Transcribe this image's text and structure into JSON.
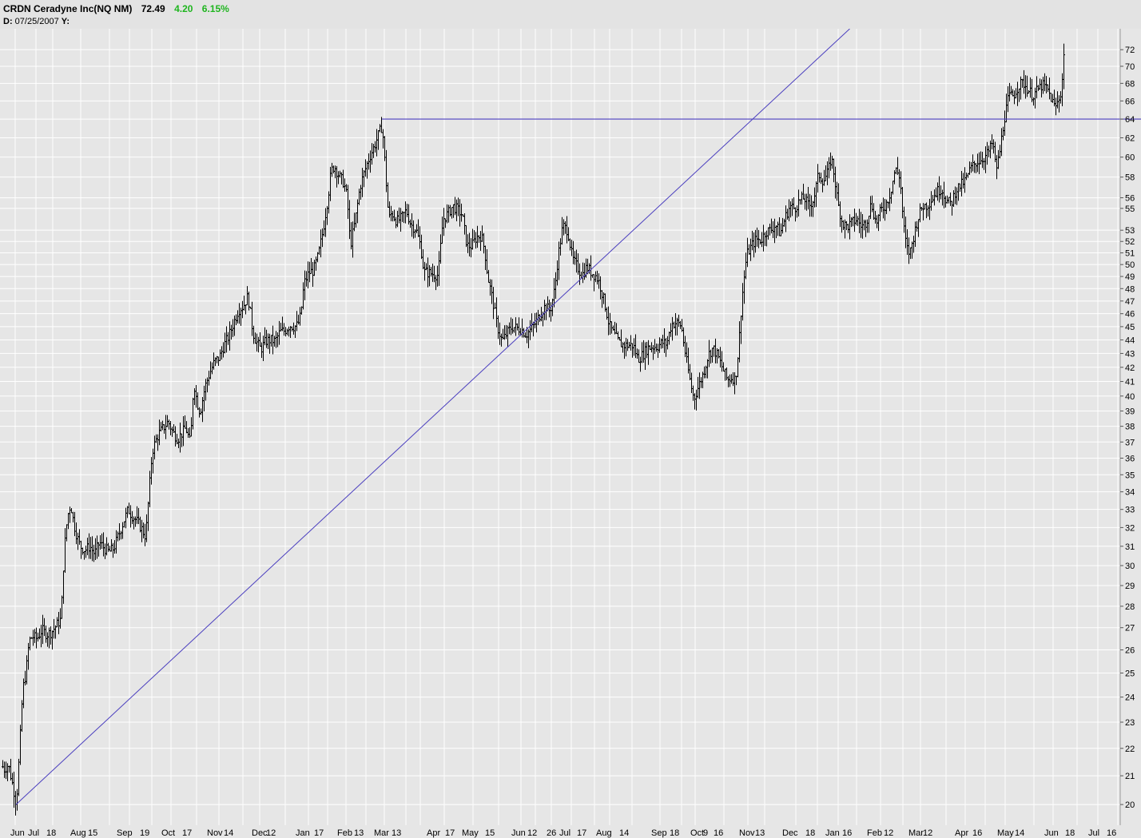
{
  "header": {
    "title": "CRDN Ceradyne Inc(NQ NM)",
    "last": "72.49",
    "change": "4.20",
    "change_pct": "6.15%",
    "date_label": "D:",
    "date": "07/25/2007",
    "y_label": "Y:",
    "up_color": "#1fb51f"
  },
  "chart_data": {
    "type": "bar",
    "subtype": "ohlc",
    "scale": "log",
    "grid": true,
    "bar_color": "#000000",
    "line_color": "#4b3fbf",
    "ylim": [
      19.6,
      74.5
    ],
    "y_ticks": [
      20,
      21,
      22,
      23,
      24,
      25,
      26,
      27,
      28,
      29,
      30,
      31,
      32,
      33,
      34,
      35,
      36,
      37,
      38,
      39,
      40,
      41,
      42,
      43,
      44,
      45,
      46,
      47,
      48,
      49,
      50,
      51,
      52,
      53,
      55,
      56,
      58,
      60,
      62,
      64,
      66,
      68,
      70,
      72
    ],
    "x_tick_labels": [
      "Jun",
      "Jul",
      "18",
      "Aug",
      "15",
      "Sep",
      "19",
      "Oct",
      "17",
      "Nov",
      "14",
      "Dec",
      "12",
      "Jan",
      "17",
      "Feb",
      "13",
      "Mar",
      "13",
      "Apr",
      "17",
      "May",
      "15",
      "Jun",
      "12",
      "26",
      "Jul",
      "17",
      "Aug",
      "14",
      "Sep",
      "18",
      "Oct",
      "9",
      "16",
      "Nov",
      "13",
      "Dec",
      "18",
      "Jan",
      "16",
      "Feb",
      "12",
      "Mar",
      "12",
      "Apr",
      "16",
      "May",
      "14",
      "Jun",
      "18",
      "Jul",
      "16"
    ],
    "price_path": [
      [
        0,
        21.7
      ],
      [
        4,
        21.2
      ],
      [
        10,
        21.4
      ],
      [
        16,
        20.6
      ],
      [
        20,
        20.0
      ],
      [
        24,
        21.9
      ],
      [
        28,
        24.3
      ],
      [
        32,
        25.0
      ],
      [
        36,
        26.4
      ],
      [
        40,
        26.6
      ],
      [
        46,
        26.5
      ],
      [
        52,
        26.9
      ],
      [
        58,
        26.7
      ],
      [
        64,
        26.8
      ],
      [
        70,
        27.1
      ],
      [
        76,
        27.4
      ],
      [
        80,
        30.8
      ],
      [
        84,
        32.6
      ],
      [
        88,
        33.3
      ],
      [
        92,
        32.2
      ],
      [
        96,
        31.5
      ],
      [
        100,
        31.0
      ],
      [
        106,
        30.8
      ],
      [
        112,
        31.0
      ],
      [
        118,
        30.6
      ],
      [
        124,
        31.2
      ],
      [
        130,
        30.9
      ],
      [
        136,
        30.7
      ],
      [
        142,
        30.9
      ],
      [
        148,
        31.6
      ],
      [
        154,
        32.3
      ],
      [
        160,
        33.0
      ],
      [
        164,
        32.7
      ],
      [
        170,
        32.4
      ],
      [
        176,
        32.0
      ],
      [
        182,
        31.5
      ],
      [
        186,
        33.9
      ],
      [
        190,
        36.4
      ],
      [
        194,
        37.0
      ],
      [
        198,
        37.5
      ],
      [
        204,
        37.9
      ],
      [
        210,
        38.3
      ],
      [
        216,
        37.6
      ],
      [
        222,
        37.2
      ],
      [
        228,
        37.6
      ],
      [
        232,
        37.9
      ],
      [
        238,
        36.9
      ],
      [
        242,
        41.0
      ],
      [
        246,
        39.6
      ],
      [
        250,
        38.9
      ],
      [
        256,
        40.6
      ],
      [
        262,
        41.6
      ],
      [
        268,
        42.4
      ],
      [
        274,
        42.7
      ],
      [
        280,
        43.6
      ],
      [
        286,
        44.3
      ],
      [
        292,
        45.3
      ],
      [
        298,
        46.3
      ],
      [
        304,
        46.6
      ],
      [
        310,
        47.4
      ],
      [
        316,
        44.6
      ],
      [
        320,
        43.9
      ],
      [
        326,
        43.3
      ],
      [
        332,
        43.9
      ],
      [
        338,
        44.0
      ],
      [
        344,
        43.9
      ],
      [
        350,
        44.6
      ],
      [
        356,
        44.7
      ],
      [
        362,
        45.1
      ],
      [
        368,
        45.0
      ],
      [
        372,
        45.1
      ],
      [
        376,
        45.9
      ],
      [
        380,
        48.4
      ],
      [
        386,
        49.3
      ],
      [
        392,
        49.5
      ],
      [
        398,
        50.8
      ],
      [
        404,
        53.0
      ],
      [
        410,
        56.0
      ],
      [
        414,
        58.6
      ],
      [
        418,
        59.1
      ],
      [
        424,
        58.1
      ],
      [
        430,
        57.4
      ],
      [
        434,
        56.0
      ],
      [
        438,
        51.6
      ],
      [
        444,
        53.8
      ],
      [
        450,
        57.0
      ],
      [
        456,
        58.6
      ],
      [
        462,
        60.0
      ],
      [
        468,
        61.1
      ],
      [
        474,
        62.5
      ],
      [
        478,
        63.3
      ],
      [
        482,
        58.5
      ],
      [
        486,
        54.0
      ],
      [
        490,
        54.6
      ],
      [
        496,
        53.8
      ],
      [
        502,
        54.1
      ],
      [
        508,
        54.8
      ],
      [
        514,
        53.5
      ],
      [
        520,
        53.1
      ],
      [
        526,
        51.6
      ],
      [
        530,
        49.4
      ],
      [
        536,
        49.3
      ],
      [
        542,
        49.2
      ],
      [
        548,
        49.1
      ],
      [
        554,
        54.0
      ],
      [
        560,
        54.5
      ],
      [
        566,
        55.2
      ],
      [
        572,
        54.9
      ],
      [
        578,
        54.4
      ],
      [
        584,
        51.6
      ],
      [
        590,
        51.6
      ],
      [
        596,
        52.4
      ],
      [
        602,
        52.5
      ],
      [
        606,
        51.3
      ],
      [
        610,
        49.0
      ],
      [
        616,
        47.1
      ],
      [
        622,
        45.0
      ],
      [
        628,
        43.9
      ],
      [
        634,
        44.5
      ],
      [
        640,
        45.0
      ],
      [
        646,
        44.9
      ],
      [
        652,
        44.8
      ],
      [
        658,
        44.4
      ],
      [
        664,
        44.8
      ],
      [
        670,
        45.3
      ],
      [
        676,
        46.0
      ],
      [
        682,
        46.6
      ],
      [
        688,
        46.2
      ],
      [
        694,
        48.0
      ],
      [
        698,
        50.7
      ],
      [
        704,
        53.4
      ],
      [
        710,
        53.0
      ],
      [
        716,
        50.5
      ],
      [
        722,
        49.8
      ],
      [
        728,
        49.1
      ],
      [
        734,
        49.8
      ],
      [
        740,
        49.3
      ],
      [
        746,
        49.0
      ],
      [
        750,
        48.4
      ],
      [
        756,
        46.9
      ],
      [
        762,
        45.1
      ],
      [
        768,
        44.4
      ],
      [
        774,
        43.8
      ],
      [
        780,
        43.6
      ],
      [
        786,
        43.6
      ],
      [
        792,
        43.6
      ],
      [
        798,
        42.6
      ],
      [
        804,
        42.9
      ],
      [
        810,
        43.4
      ],
      [
        816,
        43.5
      ],
      [
        822,
        43.5
      ],
      [
        828,
        43.8
      ],
      [
        834,
        43.7
      ],
      [
        840,
        45.2
      ],
      [
        846,
        45.3
      ],
      [
        852,
        45.1
      ],
      [
        858,
        42.7
      ],
      [
        864,
        40.8
      ],
      [
        868,
        39.8
      ],
      [
        874,
        40.7
      ],
      [
        880,
        41.6
      ],
      [
        886,
        42.9
      ],
      [
        892,
        43.4
      ],
      [
        898,
        42.8
      ],
      [
        904,
        41.9
      ],
      [
        910,
        41.1
      ],
      [
        916,
        41.3
      ],
      [
        920,
        41.1
      ],
      [
        924,
        43.4
      ],
      [
        928,
        47.1
      ],
      [
        934,
        50.8
      ],
      [
        940,
        51.6
      ],
      [
        946,
        52.2
      ],
      [
        952,
        52.1
      ],
      [
        958,
        52.9
      ],
      [
        964,
        53.0
      ],
      [
        970,
        53.5
      ],
      [
        976,
        52.7
      ],
      [
        982,
        54.1
      ],
      [
        988,
        55.2
      ],
      [
        994,
        55.0
      ],
      [
        1000,
        55.7
      ],
      [
        1006,
        56.0
      ],
      [
        1012,
        55.2
      ],
      [
        1018,
        55.9
      ],
      [
        1024,
        58.3
      ],
      [
        1030,
        57.6
      ],
      [
        1036,
        58.5
      ],
      [
        1040,
        60.0
      ],
      [
        1044,
        58.0
      ],
      [
        1048,
        55.5
      ],
      [
        1054,
        53.6
      ],
      [
        1060,
        53.3
      ],
      [
        1066,
        53.7
      ],
      [
        1072,
        54.0
      ],
      [
        1078,
        53.3
      ],
      [
        1084,
        53.8
      ],
      [
        1090,
        55.5
      ],
      [
        1096,
        53.6
      ],
      [
        1102,
        54.8
      ],
      [
        1108,
        55.3
      ],
      [
        1114,
        56.5
      ],
      [
        1120,
        58.8
      ],
      [
        1126,
        58.0
      ],
      [
        1130,
        53.6
      ],
      [
        1134,
        51.5
      ],
      [
        1138,
        50.9
      ],
      [
        1142,
        52.1
      ],
      [
        1148,
        54.0
      ],
      [
        1154,
        55.2
      ],
      [
        1160,
        55.3
      ],
      [
        1166,
        55.9
      ],
      [
        1172,
        56.6
      ],
      [
        1178,
        56.9
      ],
      [
        1184,
        55.7
      ],
      [
        1190,
        55.4
      ],
      [
        1196,
        56.8
      ],
      [
        1202,
        57.2
      ],
      [
        1208,
        57.7
      ],
      [
        1214,
        58.8
      ],
      [
        1220,
        59.4
      ],
      [
        1226,
        59.7
      ],
      [
        1232,
        60.0
      ],
      [
        1238,
        60.7
      ],
      [
        1242,
        61.6
      ],
      [
        1246,
        58.7
      ],
      [
        1250,
        60.0
      ],
      [
        1256,
        63.8
      ],
      [
        1262,
        66.5
      ],
      [
        1268,
        66.6
      ],
      [
        1274,
        67.7
      ],
      [
        1280,
        68.1
      ],
      [
        1286,
        67.3
      ],
      [
        1292,
        66.6
      ],
      [
        1298,
        67.2
      ],
      [
        1304,
        67.8
      ],
      [
        1310,
        67.4
      ],
      [
        1316,
        66.1
      ],
      [
        1320,
        65.2
      ],
      [
        1324,
        66.0
      ],
      [
        1328,
        67.2
      ],
      [
        1332,
        72.49
      ]
    ],
    "hline": {
      "price": 64.0,
      "from_x": 478
    },
    "trendline": {
      "p1": [
        20,
        20.0
      ],
      "p2": [
        942,
        64.0
      ]
    }
  }
}
